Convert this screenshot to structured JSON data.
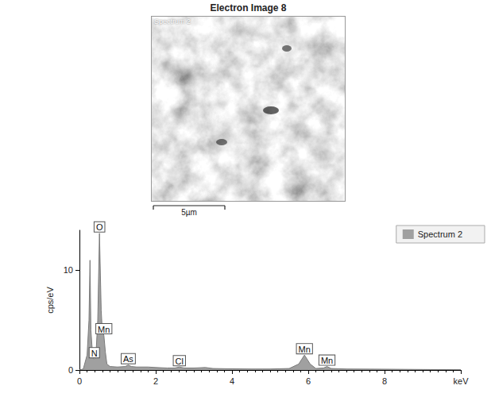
{
  "image": {
    "title": "Electron Image 8",
    "label": "Spectrum 2",
    "scale_bar": "5µm"
  },
  "chart_data": {
    "type": "area",
    "x": [
      0,
      0.1,
      0.2,
      0.25,
      0.277,
      0.3,
      0.35,
      0.39,
      0.43,
      0.48,
      0.525,
      0.57,
      0.6,
      0.64,
      0.68,
      0.72,
      0.8,
      1.0,
      1.2,
      1.28,
      1.36,
      1.5,
      1.8,
      2.0,
      2.3,
      2.5,
      2.62,
      2.75,
      3.0,
      3.3,
      3.5,
      4.0,
      4.5,
      5.0,
      5.5,
      5.75,
      5.9,
      6.05,
      6.2,
      6.4,
      6.49,
      6.6,
      7.0,
      8.0,
      9.0,
      10.0
    ],
    "series": [
      {
        "name": "Spectrum 2",
        "color": "#a0a0a0",
        "values": [
          0,
          0.1,
          1.5,
          5,
          11,
          4,
          1.2,
          1.1,
          1.3,
          5,
          13.7,
          6,
          3.8,
          3.5,
          1.8,
          0.6,
          0.35,
          0.3,
          0.35,
          0.5,
          0.35,
          0.3,
          0.3,
          0.25,
          0.2,
          0.2,
          0.3,
          0.2,
          0.2,
          0.25,
          0.15,
          0.12,
          0.1,
          0.1,
          0.15,
          0.6,
          1.5,
          0.6,
          0.15,
          0.2,
          0.35,
          0.15,
          0.1,
          0.08,
          0.05,
          0.03
        ]
      }
    ],
    "xlim": [
      0,
      10
    ],
    "xticks": [
      0,
      2,
      4,
      6,
      8,
      {
        "value": 10,
        "label": "keV"
      }
    ],
    "ylim": [
      0,
      14
    ],
    "yticks": [
      0,
      10
    ],
    "ylabel": "cps/eV",
    "annotations": [
      {
        "text": "N",
        "x": 0.39
      },
      {
        "text": "O",
        "x": 0.525
      },
      {
        "text": "Mn",
        "x": 0.64
      },
      {
        "text": "As",
        "x": 1.28
      },
      {
        "text": "Cl",
        "x": 2.62
      },
      {
        "text": "Mn",
        "x": 5.9
      },
      {
        "text": "Mn",
        "x": 6.49
      }
    ],
    "legend": "upper right",
    "grid": false
  }
}
